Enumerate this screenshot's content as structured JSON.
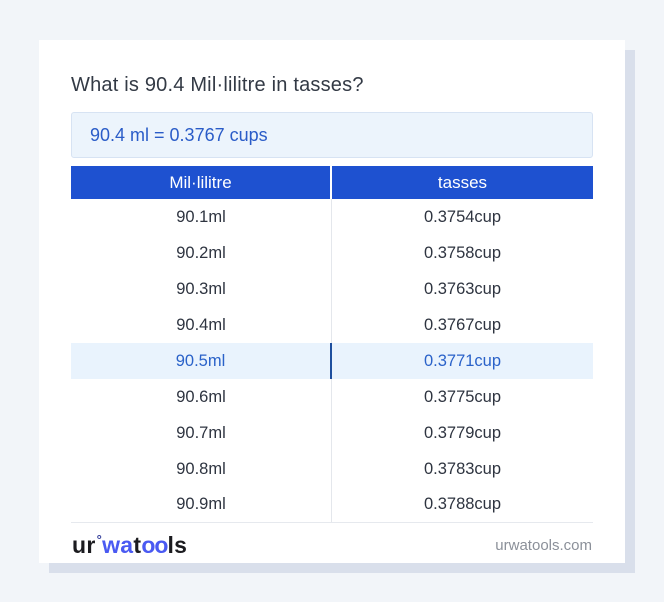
{
  "page": {
    "title": "What is 90.4 Mil·lilitre in tasses?",
    "result": "90.4 ml = 0.3767 cups"
  },
  "table": {
    "headers": [
      "Mil·lilitre",
      "tasses"
    ],
    "rows": [
      {
        "ml": "90.1ml",
        "cup": "0.3754cup",
        "highlighted": false
      },
      {
        "ml": "90.2ml",
        "cup": "0.3758cup",
        "highlighted": false
      },
      {
        "ml": "90.3ml",
        "cup": "0.3763cup",
        "highlighted": false
      },
      {
        "ml": "90.4ml",
        "cup": "0.3767cup",
        "highlighted": false
      },
      {
        "ml": "90.5ml",
        "cup": "0.3771cup",
        "highlighted": true
      },
      {
        "ml": "90.6ml",
        "cup": "0.3775cup",
        "highlighted": false
      },
      {
        "ml": "90.7ml",
        "cup": "0.3779cup",
        "highlighted": false
      },
      {
        "ml": "90.8ml",
        "cup": "0.3783cup",
        "highlighted": false
      },
      {
        "ml": "90.9ml",
        "cup": "0.3788cup",
        "highlighted": false
      }
    ]
  },
  "footer": {
    "logo": {
      "part1": "ur",
      "degree": "°",
      "part2": "wa",
      "part3": "t",
      "part4": "oo",
      "part5": "ls"
    },
    "domain": "urwatools.com"
  },
  "colors": {
    "header_blue": "#1e51d0",
    "result_text_blue": "#2a5cc8",
    "result_bg": "#ecf4fc",
    "highlight_bg": "#e9f3fd",
    "highlight_text": "#2a62c9",
    "highlight_divider": "#1e4f9e",
    "page_bg": "#f2f5f9",
    "card_shadow": "#d9dfeb",
    "logo_blue": "#4a5af2"
  }
}
